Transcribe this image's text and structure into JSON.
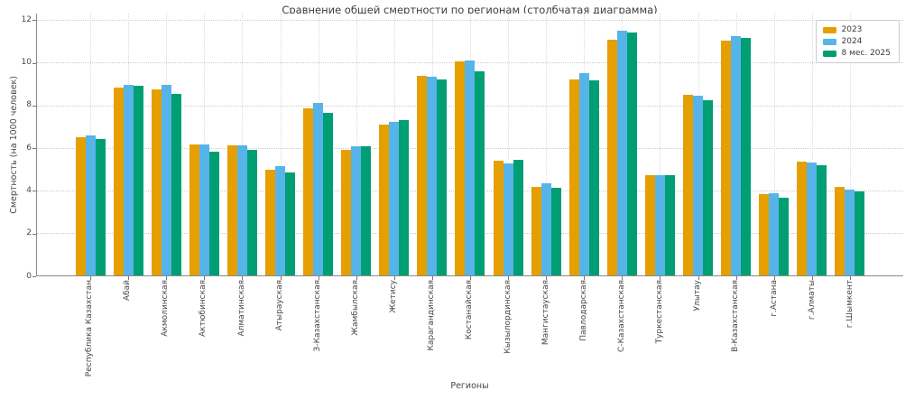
{
  "chart_data": {
    "type": "bar",
    "title": "Сравнение общей смертности по регионам (столбчатая диаграмма)",
    "xlabel": "Регионы",
    "ylabel": "Смертность (на 1000 человек)",
    "ylim": [
      0,
      12
    ],
    "yticks": [
      0,
      2,
      4,
      6,
      8,
      10,
      12
    ],
    "grid": true,
    "legend_position": "upper right",
    "categories": [
      "Республика Казахстан",
      "Абай",
      "Акмолинская",
      "Актюбинская",
      "Алматинская",
      "Атырауская",
      "З-Казахстанская",
      "Жамбылская",
      "Жетису",
      "Карагандинская",
      "Костанайская",
      "Кызылординская",
      "Мангистауская",
      "Павлодарская",
      "С-Казахстанская",
      "Туркестанская",
      "Улытау",
      "В-Казахстанская",
      "г.Астана",
      "г.Алматы",
      "г.Шымкент"
    ],
    "series": [
      {
        "name": "2023",
        "color": "#E69F00",
        "values": [
          6.5,
          8.85,
          8.75,
          6.15,
          6.1,
          4.95,
          7.85,
          5.9,
          7.1,
          9.4,
          10.05,
          5.4,
          4.15,
          9.2,
          11.1,
          4.7,
          8.5,
          11.05,
          3.8,
          5.35,
          4.15
        ]
      },
      {
        "name": "2024",
        "color": "#56B4E9",
        "values": [
          6.6,
          8.95,
          8.95,
          6.15,
          6.1,
          5.15,
          8.1,
          6.05,
          7.2,
          9.35,
          10.1,
          5.25,
          4.35,
          9.5,
          11.5,
          4.7,
          8.45,
          11.25,
          3.85,
          5.3,
          4.05
        ]
      },
      {
        "name": "8 мес. 2025",
        "color": "#009E73",
        "values": [
          6.4,
          8.9,
          8.55,
          5.8,
          5.9,
          4.85,
          7.65,
          6.05,
          7.3,
          9.2,
          9.6,
          5.45,
          4.1,
          9.15,
          11.4,
          4.7,
          8.25,
          11.15,
          3.65,
          5.2,
          3.95
        ]
      }
    ]
  }
}
